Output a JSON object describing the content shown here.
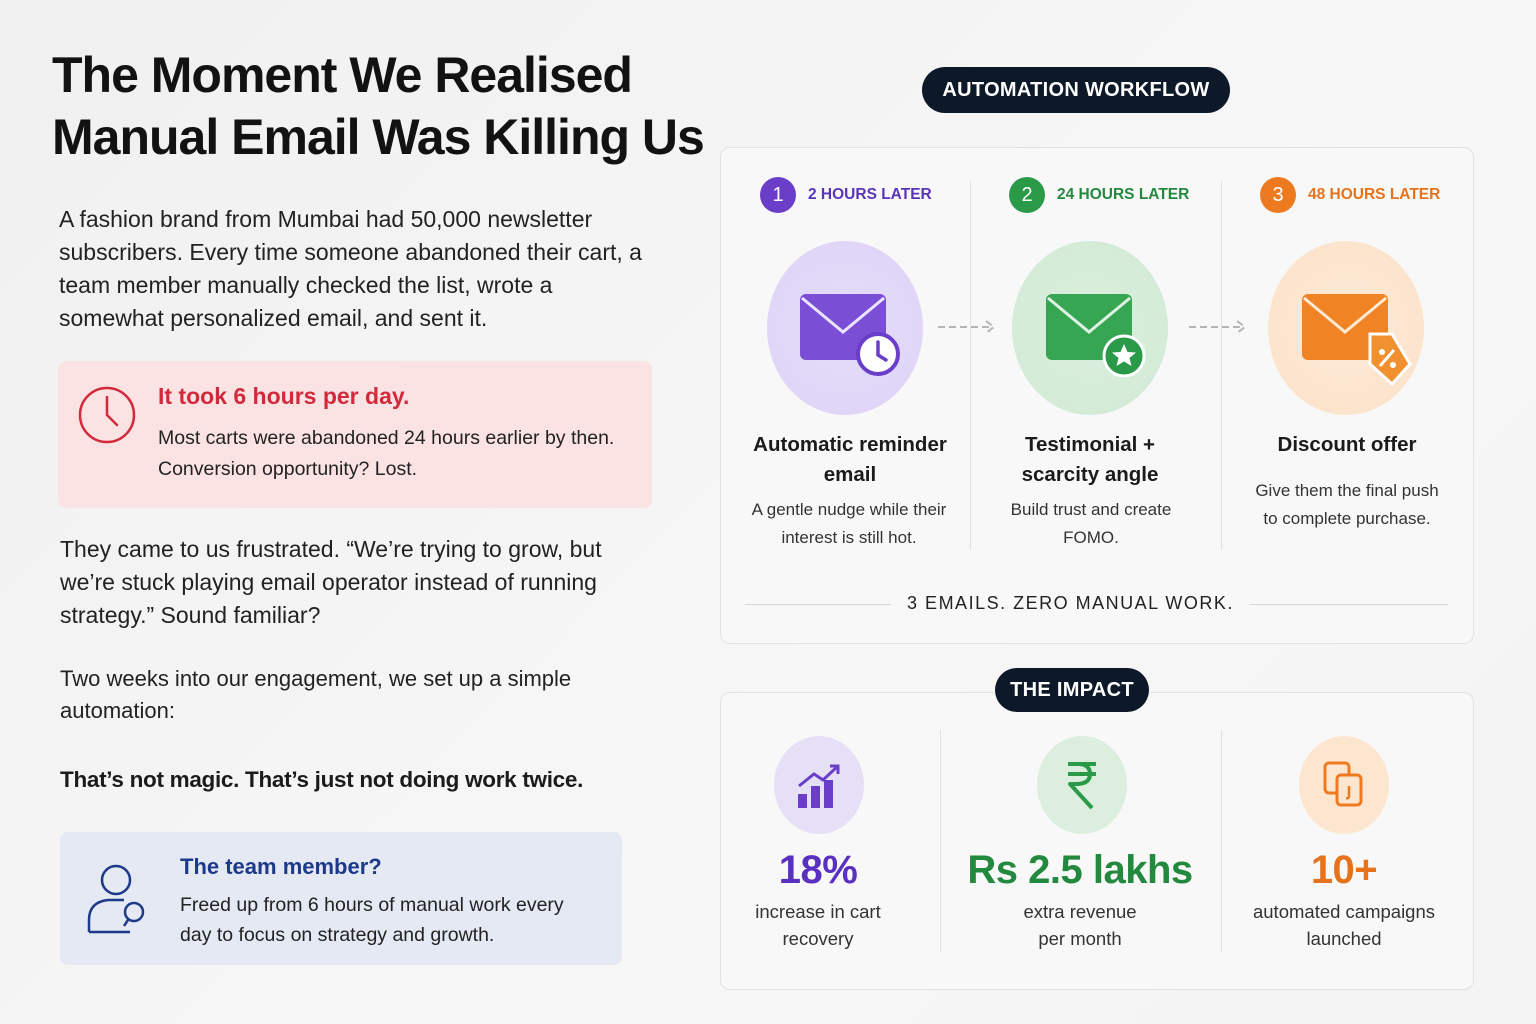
{
  "title": [
    "The Moment We Realised",
    "Manual Email Was Killing Us"
  ],
  "intro": "A fashion brand from Mumbai had 50,000 newsletter subscribers. Every time someone abandoned their cart, a team member manually checked the list, wrote a somewhat personalized email, and sent it.",
  "callout": {
    "heading": "It took 6 hours per day.",
    "text": "Most carts were abandoned 24 hours earlier by then. Conversion opportunity? Lost."
  },
  "quote_paragraph": "They came to us frustrated. “We’re trying to grow, but we’re stuck playing email operator instead of running strategy.” Sound familiar?",
  "setup_paragraph": "Two weeks into our engagement, we set up a simple automation:",
  "bold_line": "That’s not magic. That’s just not doing work twice.",
  "team_callout": {
    "heading": "The team member?",
    "text": "Freed up from 6 hours of manual work every day to focus on strategy and growth."
  },
  "workflow": {
    "badge": "AUTOMATION WORKFLOW",
    "steps": [
      {
        "number": 1,
        "timing": "2 HOURS LATER",
        "title": "Automatic reminder email",
        "text": "A gentle nudge while their interest is still hot."
      },
      {
        "number": 2,
        "timing": "24 HOURS LATER",
        "title": "Testimonial + scarcity angle",
        "text": "Build trust and create FOMO."
      },
      {
        "number": 3,
        "timing": "48 HOURS LATER",
        "title": "Discount offer",
        "text": "Give them the final push to complete purchase."
      }
    ],
    "footer": "3 EMAILS. ZERO MANUAL WORK."
  },
  "impact": {
    "badge": "THE IMPACT",
    "stats": [
      {
        "value": "18%",
        "label": "increase in cart recovery"
      },
      {
        "value": "Rs 2.5 lakhs",
        "label": "extra revenue per month"
      },
      {
        "value": "10+",
        "label": "automated campaigns launched"
      }
    ]
  }
}
